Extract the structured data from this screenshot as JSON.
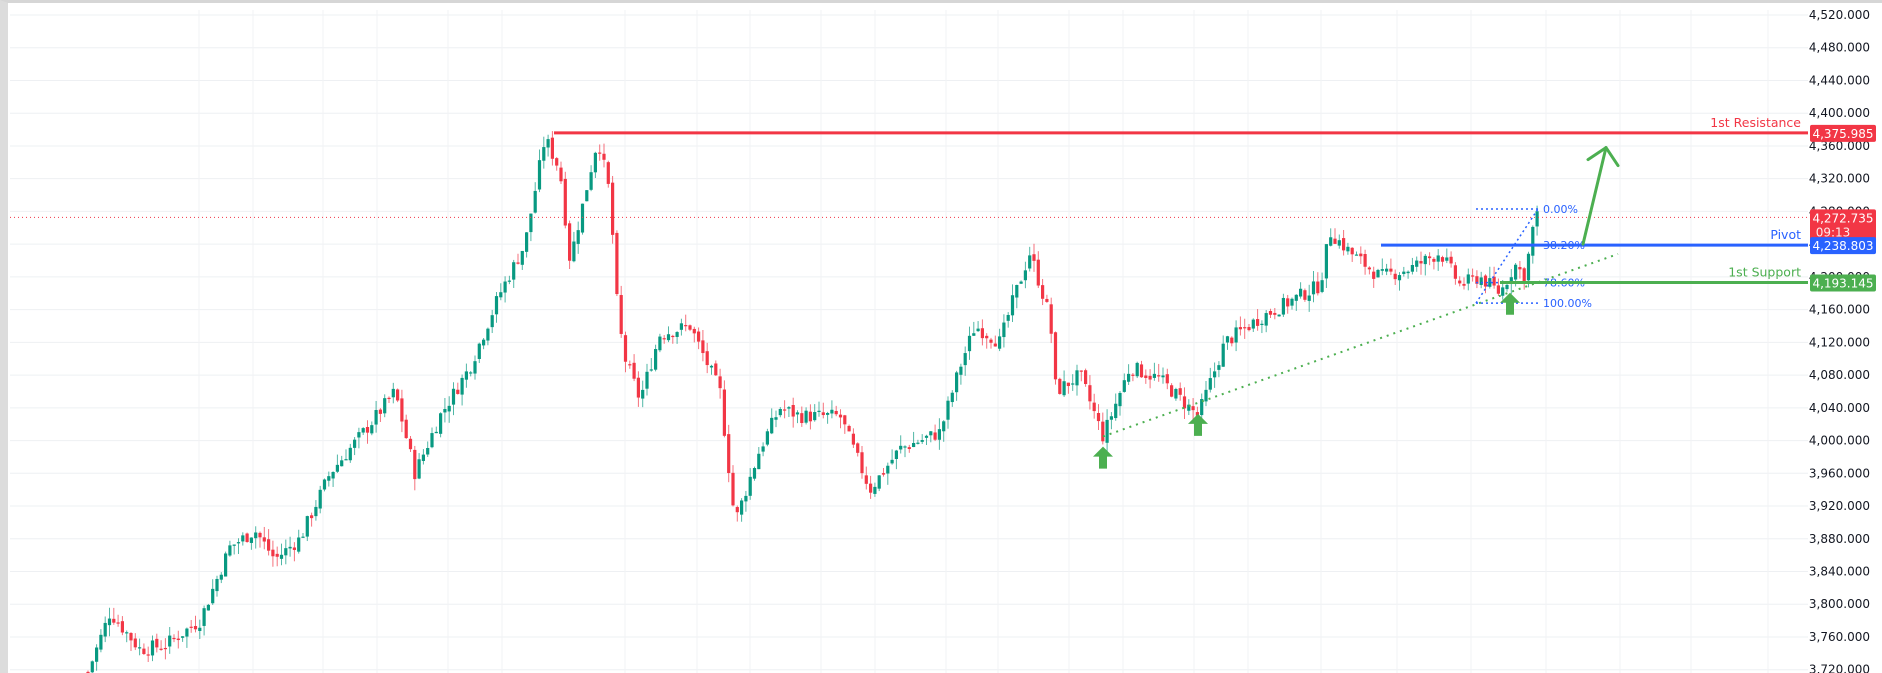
{
  "chart_data": {
    "type": "candlestick",
    "title": "",
    "xlabel": "",
    "ylabel": "",
    "ylim": [
      3700,
      4530
    ],
    "grid": true,
    "y_ticks": [
      "4,520.000",
      "4,480.000",
      "4,440.000",
      "4,400.000",
      "4,360.000",
      "4,320.000",
      "4,280.000",
      "4,240.000",
      "4,200.000",
      "4,160.000",
      "4,120.000",
      "4,080.000",
      "4,040.000",
      "4,000.000",
      "3,960.000",
      "3,920.000",
      "3,880.000",
      "3,840.000",
      "3,800.000",
      "3,760.000",
      "3,720.000"
    ],
    "y_tick_values": [
      4520,
      4480,
      4440,
      4400,
      4360,
      4320,
      4280,
      4240,
      4200,
      4160,
      4120,
      4080,
      4040,
      4000,
      3960,
      3920,
      3880,
      3840,
      3800,
      3760,
      3720
    ],
    "price_path": [
      [
        88,
        3717
      ],
      [
        110,
        3790
      ],
      [
        140,
        3745
      ],
      [
        165,
        3750
      ],
      [
        200,
        3780
      ],
      [
        230,
        3870
      ],
      [
        255,
        3890
      ],
      [
        275,
        3855
      ],
      [
        300,
        3880
      ],
      [
        330,
        3960
      ],
      [
        370,
        4020
      ],
      [
        395,
        4060
      ],
      [
        415,
        3960
      ],
      [
        440,
        4030
      ],
      [
        470,
        4090
      ],
      [
        500,
        4180
      ],
      [
        525,
        4240
      ],
      [
        545,
        4370
      ],
      [
        560,
        4330
      ],
      [
        570,
        4220
      ],
      [
        585,
        4300
      ],
      [
        598,
        4370
      ],
      [
        610,
        4300
      ],
      [
        618,
        4150
      ],
      [
        625,
        4100
      ],
      [
        640,
        4050
      ],
      [
        660,
        4130
      ],
      [
        690,
        4140
      ],
      [
        720,
        4060
      ],
      [
        735,
        3900
      ],
      [
        760,
        3990
      ],
      [
        780,
        4040
      ],
      [
        800,
        4030
      ],
      [
        840,
        4030
      ],
      [
        870,
        3940
      ],
      [
        900,
        3990
      ],
      [
        940,
        4010
      ],
      [
        960,
        4090
      ],
      [
        975,
        4140
      ],
      [
        1000,
        4120
      ],
      [
        1010,
        4160
      ],
      [
        1030,
        4230
      ],
      [
        1050,
        4150
      ],
      [
        1056,
        4060
      ],
      [
        1080,
        4080
      ],
      [
        1103,
        4005
      ],
      [
        1130,
        4090
      ],
      [
        1160,
        4075
      ],
      [
        1198,
        4030
      ],
      [
        1225,
        4120
      ],
      [
        1260,
        4150
      ],
      [
        1290,
        4170
      ],
      [
        1320,
        4190
      ],
      [
        1330,
        4255
      ],
      [
        1350,
        4230
      ],
      [
        1380,
        4200
      ],
      [
        1410,
        4210
      ],
      [
        1440,
        4230
      ],
      [
        1460,
        4190
      ],
      [
        1480,
        4200
      ],
      [
        1500,
        4180
      ],
      [
        1515,
        4215
      ],
      [
        1525,
        4200
      ],
      [
        1535,
        4275
      ],
      [
        1540,
        4272.735
      ]
    ],
    "levels": [
      {
        "name": "1st Resistance",
        "value": 4375.985,
        "label": "4,375.985",
        "color": "#f23645",
        "x_start": 554
      },
      {
        "name": "Pivot",
        "value": 4238.803,
        "label": "4,238.803",
        "color": "#2962ff",
        "x_start": 1381
      },
      {
        "name": "1st Support",
        "value": 4193.145,
        "label": "4,193.145",
        "color": "#4caf50",
        "x_start": 1500
      }
    ],
    "current_price": {
      "value": 4272.735,
      "label": "4,272.735",
      "countdown": "09:13",
      "color": "#f23645"
    },
    "fibonacci": {
      "levels": [
        {
          "label": "0.00%",
          "value": 4283
        },
        {
          "label": "38.20%",
          "value": 4238.8
        },
        {
          "label": "78.60%",
          "value": 4193
        },
        {
          "label": "100.00%",
          "value": 4168
        }
      ],
      "x_start": 1476,
      "x_end": 1540,
      "color": "#2962ff"
    },
    "annotations": [
      {
        "type": "up-arrow",
        "x": 1103,
        "price": 4000
      },
      {
        "type": "up-arrow",
        "x": 1198,
        "price": 4040
      },
      {
        "type": "up-arrow",
        "x": 1510,
        "price": 4188
      },
      {
        "type": "trendline-dotted",
        "from": [
          1103,
          4005
        ],
        "to": [
          1618,
          4228
        ],
        "color": "#4caf50"
      },
      {
        "type": "projection-arrow",
        "from": [
          1583,
          4240
        ],
        "to": [
          1606,
          4358
        ],
        "color": "#4caf50"
      }
    ]
  },
  "axis": {
    "ticks": [
      "4,520.000",
      "4,480.000",
      "4,440.000",
      "4,400.000",
      "4,360.000",
      "4,320.000",
      "4,280.000",
      "4,240.000",
      "4,200.000",
      "4,160.000",
      "4,120.000",
      "4,080.000",
      "4,040.000",
      "4,000.000",
      "3,960.000",
      "3,920.000",
      "3,880.000",
      "3,840.000",
      "3,800.000",
      "3,760.000",
      "3,720.000"
    ]
  },
  "labels": {
    "resistance": "1st Resistance",
    "pivot": "Pivot",
    "support": "1st Support",
    "resistance_price": "4,375.985",
    "pivot_price": "4,238.803",
    "support_price": "4,193.145",
    "current_price": "4,272.735",
    "countdown": "09:13",
    "fib_0": "0.00%",
    "fib_382": "38.20%",
    "fib_786": "78.60%",
    "fib_100": "100.00%"
  },
  "colors": {
    "up": "#089981",
    "down": "#f23645",
    "grid": "#f0f3fa",
    "resistance": "#f23645",
    "pivot": "#2962ff",
    "support": "#4caf50"
  }
}
